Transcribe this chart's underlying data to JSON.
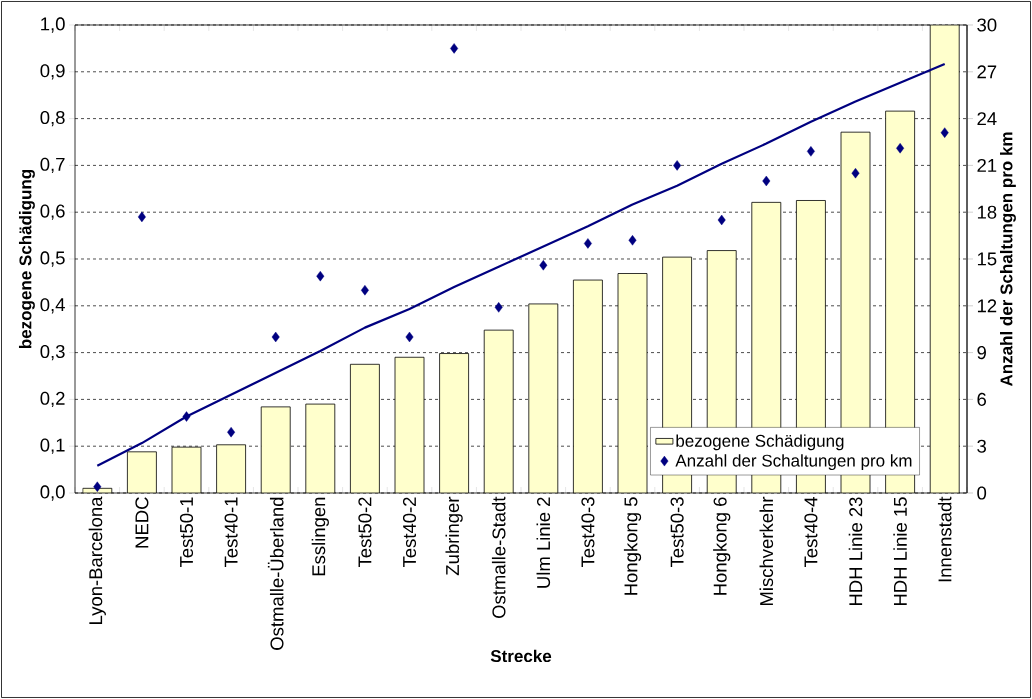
{
  "chart_data": {
    "type": "bar",
    "xlabel": "Strecke",
    "ylabel": "bezogene Schädigung",
    "y2label": "Anzahl der Schaltungen pro km",
    "categories": [
      "Lyon-Barcelona",
      "NEDC",
      "Test50-1",
      "Test40-1",
      "Ostmalle-Überland",
      "Esslingen",
      "Test50-2",
      "Test40-2",
      "Zubringer",
      "Ostmalle-Stadt",
      "Ulm Linie 2",
      "Test40-3",
      "Hongkong 5",
      "Test50-3",
      "Hongkong 6",
      "Mischverkehr",
      "Test40-4",
      "HDH Linie 23",
      "HDH Linie 15",
      "Innenstadt"
    ],
    "series": [
      {
        "name": "bezogene Schädigung",
        "color": "#ffffcc",
        "values": [
          0.01,
          0.088,
          0.098,
          0.103,
          0.184,
          0.19,
          0.275,
          0.29,
          0.298,
          0.348,
          0.404,
          0.455,
          0.469,
          0.504,
          0.518,
          0.621,
          0.625,
          0.771,
          0.816,
          1.0
        ]
      },
      {
        "name": "Anzahl der Schaltungen pro km",
        "type": "scatter",
        "axis": "y2",
        "marker": "diamond",
        "color": "#000080",
        "values": [
          0.4,
          17.7,
          4.9,
          3.9,
          10.0,
          13.9,
          13.0,
          10.0,
          28.5,
          11.9,
          14.6,
          16.0,
          16.2,
          21.0,
          17.5,
          20.0,
          21.9,
          20.5,
          22.1,
          23.1
        ]
      },
      {
        "type": "line",
        "axis": "y2",
        "color": "#000080",
        "values": [
          1.75,
          3.2,
          4.9,
          6.3,
          7.7,
          9.1,
          10.6,
          11.8,
          13.2,
          14.5,
          15.8,
          17.1,
          18.5,
          19.7,
          21.1,
          22.4,
          23.8,
          25.1,
          26.3,
          27.5
        ]
      }
    ],
    "ylim": [
      0,
      1
    ],
    "yticks": [
      {
        "value": 0,
        "label": "0,0"
      },
      {
        "value": 0.1,
        "label": "0,1"
      },
      {
        "value": 0.2,
        "label": "0,2"
      },
      {
        "value": 0.3,
        "label": "0,3"
      },
      {
        "value": 0.4,
        "label": "0,4"
      },
      {
        "value": 0.5,
        "label": "0,5"
      },
      {
        "value": 0.6,
        "label": "0,6"
      },
      {
        "value": 0.7,
        "label": "0,7"
      },
      {
        "value": 0.8,
        "label": "0,8"
      },
      {
        "value": 0.9,
        "label": "0,9"
      },
      {
        "value": 1,
        "label": "1,0"
      }
    ],
    "y2lim": [
      0,
      30
    ],
    "y2ticks": [
      0,
      3,
      6,
      9,
      12,
      15,
      18,
      21,
      24,
      27,
      30
    ],
    "grid": "y",
    "legend": "bottom right"
  }
}
